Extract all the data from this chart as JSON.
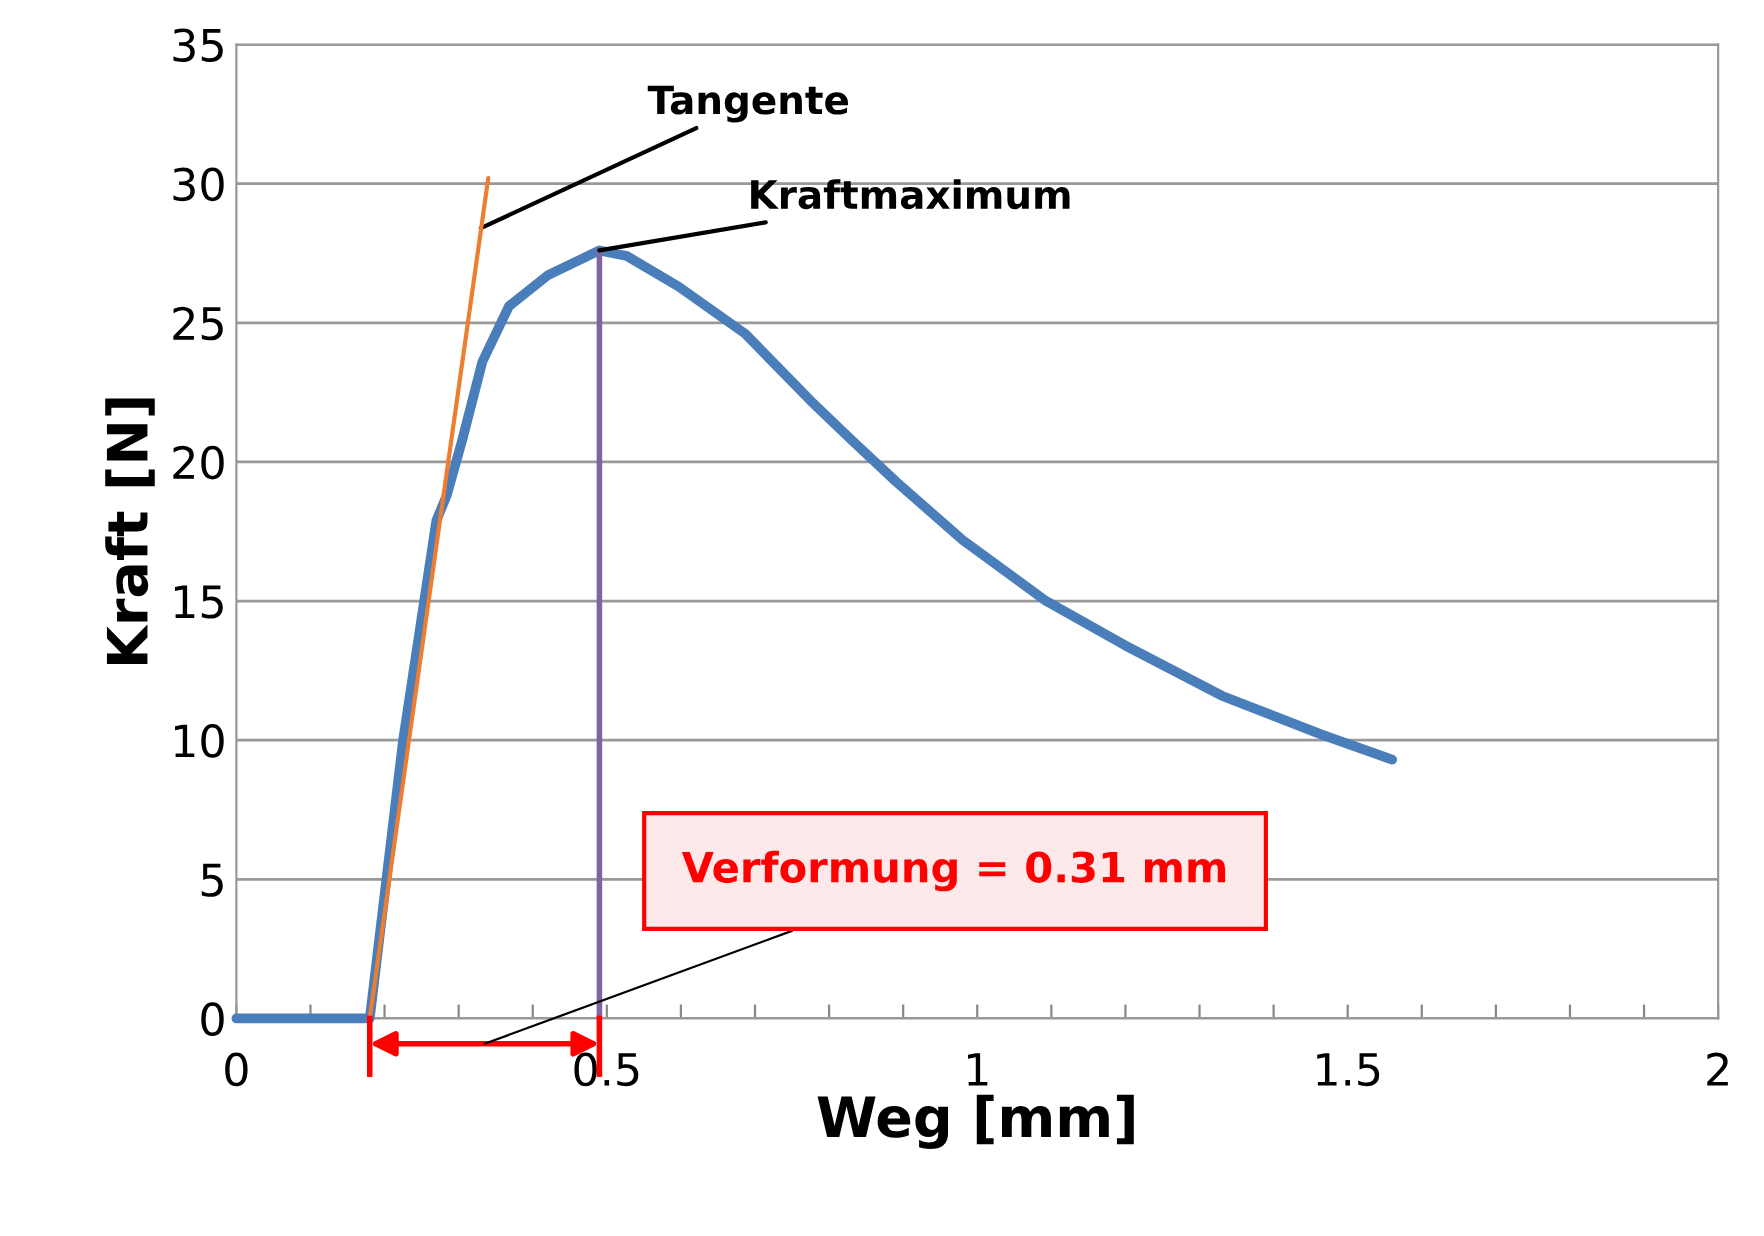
{
  "chart_data": {
    "type": "line",
    "xlabel": "Weg [mm]",
    "ylabel": "Kraft [N]",
    "xlim": [
      0,
      2
    ],
    "ylim": [
      0,
      35
    ],
    "xticks": [
      0,
      {
        "value": 0.1,
        "label": null
      },
      {
        "value": 0.2,
        "label": null
      },
      {
        "value": 0.3,
        "label": null
      },
      {
        "value": 0.4,
        "label": null
      },
      0.5,
      {
        "value": 0.6,
        "label": null
      },
      {
        "value": 0.7,
        "label": null
      },
      {
        "value": 0.8,
        "label": null
      },
      {
        "value": 0.9,
        "label": null
      },
      1,
      {
        "value": 1.1,
        "label": null
      },
      {
        "value": 1.2,
        "label": null
      },
      {
        "value": 1.3,
        "label": null
      },
      {
        "value": 1.4,
        "label": null
      },
      1.5,
      {
        "value": 1.6,
        "label": null
      },
      {
        "value": 1.7,
        "label": null
      },
      {
        "value": 1.8,
        "label": null
      },
      {
        "value": 1.9,
        "label": null
      },
      2
    ],
    "yticks": [
      0,
      5,
      10,
      15,
      20,
      25,
      30,
      35
    ],
    "grid": "y",
    "legend": false,
    "marker": "none",
    "line_style": "solid",
    "series": [
      {
        "color": "#4a7ebb",
        "x": [
          0,
          0.18,
          0.225,
          0.27,
          0.284,
          0.305,
          0.332,
          0.368,
          0.42,
          0.49,
          0.527,
          0.597,
          0.687,
          0.775,
          0.83,
          0.89,
          0.98,
          1.093,
          1.2,
          1.33,
          1.465,
          1.56
        ],
        "values": [
          0,
          0,
          10,
          17.9,
          18.8,
          20.8,
          23.6,
          25.6,
          26.7,
          27.6,
          27.4,
          26.3,
          24.6,
          22.2,
          20.8,
          19.3,
          17.2,
          15.0,
          13.4,
          11.6,
          10.2,
          9.3
        ]
      },
      {
        "color": "#ed7d31",
        "x": [
          0.18,
          0.34
        ],
        "values": [
          0,
          30.2
        ]
      },
      {
        "color": "#8064a2",
        "x": [
          0.49,
          0.49
        ],
        "values": [
          0,
          27.6
        ]
      }
    ],
    "annotations": [
      {
        "text": "Tangente",
        "x": 0.33,
        "y": 28.4
      },
      {
        "text": "Kraftmaximum",
        "x": 0.49,
        "y": 27.6
      },
      "Verformung = 0.31 mm"
    ]
  }
}
